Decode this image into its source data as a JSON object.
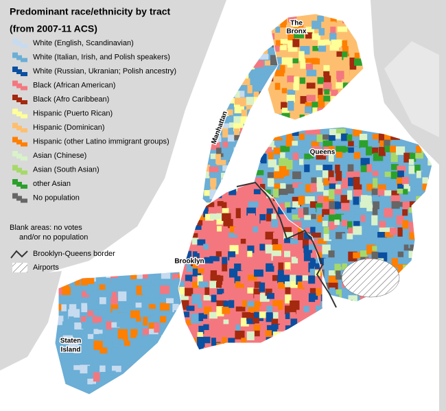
{
  "title": "Predominant race/ethnicity by tract",
  "subtitle": "(from 2007-11 ACS)",
  "legend": [
    {
      "label": "White (English, Scandinavian)",
      "color": "#c6dbef"
    },
    {
      "label": "White (Italian, Irish, and Polish speakers)",
      "color": "#6baed6"
    },
    {
      "label": "White (Russian, Ukranian; Polish ancestry)",
      "color": "#0b4fa0"
    },
    {
      "label": "Black (African American)",
      "color": "#f4777f"
    },
    {
      "label": "Black (Afro Caribbean)",
      "color": "#a3290f"
    },
    {
      "label": "Hispanic (Puerto Rican)",
      "color": "#ffff99"
    },
    {
      "label": "Hispanic (Dominican)",
      "color": "#fdbf6f"
    },
    {
      "label": "Hispanic (other Latino immigrant groups)",
      "color": "#ff7f00"
    },
    {
      "label": "Asian (Chinese)",
      "color": "#d9f2c9"
    },
    {
      "label": "Asian (South Asian)",
      "color": "#a6d96a"
    },
    {
      "label": "other Asian",
      "color": "#2ca02c"
    },
    {
      "label": "No population",
      "color": "#666666"
    }
  ],
  "notes": [
    "Blank areas: no votes",
    "and/or no population"
  ],
  "border_legend": "Brooklyn-Queens border",
  "airports_legend": "Airports",
  "places": {
    "bronx": [
      "The",
      "Bronx"
    ],
    "manhattan": "Manhattan",
    "queens": "Queens",
    "brooklyn": "Brooklyn",
    "staten_island": [
      "Staten",
      "Island"
    ]
  }
}
